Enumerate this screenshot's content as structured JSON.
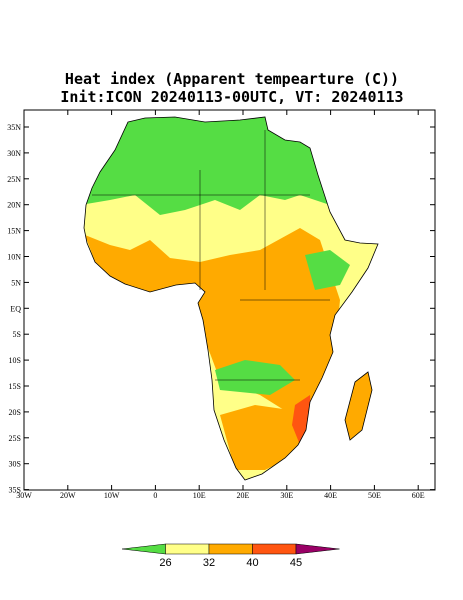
{
  "title": "Heat index (Apparent tempearture (C))",
  "subtitle": "Init:ICON 20240113-00UTC, VT: 20240113",
  "lat_ticks": [
    "35N",
    "30N",
    "25N",
    "20N",
    "15N",
    "10N",
    "5N",
    "EQ",
    "5S",
    "10S",
    "15S",
    "20S",
    "25S",
    "30S",
    "35S"
  ],
  "lon_ticks": [
    "30W",
    "20W",
    "10W",
    "0",
    "10E",
    "20E",
    "30E",
    "40E",
    "50E",
    "60E"
  ],
  "colorbar": {
    "labels": [
      26,
      32,
      40,
      45
    ],
    "colors": [
      "#55dd44",
      "#ffff88",
      "#ffaa00",
      "#ff5511",
      "#aa0044",
      "#990066"
    ]
  }
}
